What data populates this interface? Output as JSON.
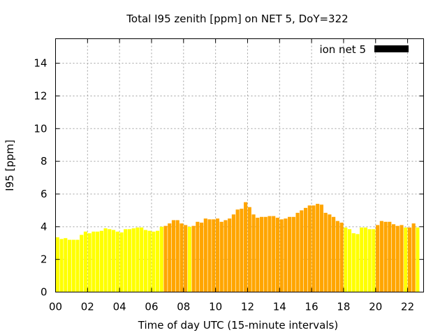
{
  "chart_data": {
    "type": "bar",
    "title": "Total I95 zenith [ppm] on NET 5, DoY=322",
    "xlabel": "Time of day UTC (15-minute intervals)",
    "ylabel": "I95 [ppm]",
    "xlim": [
      0,
      23
    ],
    "ylim": [
      0,
      15.5
    ],
    "grid": true,
    "legend": {
      "label": "ion net 5",
      "color": "#000000",
      "placement": "top-right"
    },
    "x_ticks": [
      "00",
      "02",
      "04",
      "06",
      "08",
      "10",
      "12",
      "14",
      "16",
      "18",
      "20",
      "22"
    ],
    "y_ticks": [
      "0",
      "2",
      "4",
      "6",
      "8",
      "10",
      "12",
      "14"
    ],
    "colors": {
      "low": "#ffff00",
      "high": "#ffa500"
    },
    "series": [
      {
        "x_start": 0,
        "x_step": 0.25,
        "values": [
          3.35,
          3.25,
          3.3,
          3.2,
          3.2,
          3.2,
          3.5,
          3.7,
          3.6,
          3.7,
          3.7,
          3.75,
          3.9,
          3.85,
          3.8,
          3.7,
          3.65,
          3.85,
          3.85,
          3.9,
          3.95,
          3.95,
          3.8,
          3.75,
          3.7,
          3.75,
          4.0,
          4.05,
          4.2,
          4.4,
          4.4,
          4.2,
          4.1,
          4.0,
          4.05,
          4.3,
          4.25,
          4.5,
          4.45,
          4.45,
          4.5,
          4.3,
          4.4,
          4.5,
          4.75,
          5.05,
          5.1,
          5.5,
          5.2,
          4.75,
          4.55,
          4.6,
          4.6,
          4.65,
          4.65,
          4.55,
          4.45,
          4.5,
          4.6,
          4.6,
          4.85,
          5.0,
          5.15,
          5.3,
          5.3,
          5.4,
          5.35,
          4.85,
          4.75,
          4.6,
          4.35,
          4.25,
          3.95,
          3.85,
          3.6,
          3.55,
          3.95,
          3.95,
          3.85,
          3.85,
          4.1,
          4.35,
          4.3,
          4.3,
          4.15,
          4.05,
          4.1,
          3.95,
          3.95,
          4.2,
          3.95
        ],
        "levels": [
          "low",
          "low",
          "low",
          "low",
          "low",
          "low",
          "low",
          "low",
          "low",
          "low",
          "low",
          "low",
          "low",
          "low",
          "low",
          "low",
          "low",
          "low",
          "low",
          "low",
          "low",
          "low",
          "low",
          "low",
          "low",
          "low",
          "low",
          "high",
          "high",
          "high",
          "high",
          "high",
          "high",
          "low",
          "high",
          "high",
          "high",
          "high",
          "high",
          "high",
          "high",
          "high",
          "high",
          "high",
          "high",
          "high",
          "high",
          "high",
          "high",
          "high",
          "high",
          "high",
          "high",
          "high",
          "high",
          "high",
          "high",
          "high",
          "high",
          "high",
          "high",
          "high",
          "high",
          "high",
          "high",
          "high",
          "high",
          "high",
          "high",
          "high",
          "high",
          "high",
          "low",
          "low",
          "low",
          "low",
          "low",
          "low",
          "low",
          "low",
          "high",
          "high",
          "high",
          "high",
          "high",
          "high",
          "high",
          "low",
          "high",
          "high",
          "low"
        ]
      }
    ]
  }
}
